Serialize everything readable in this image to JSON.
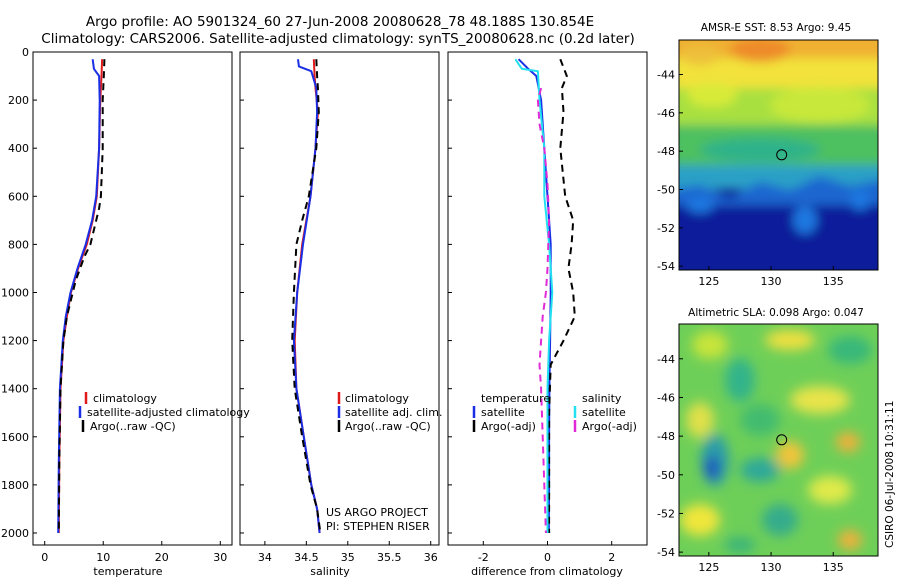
{
  "header": {
    "line1": "Argo profile: AO 5901324_60 27-Jun-2008 20080628_78 48.188S 130.854E",
    "line2": "Climatology: CARS2006. Satellite-adjusted climatology: synTS_20080628.nc (0.2d later)"
  },
  "colors": {
    "climatology": "#e01a1a",
    "satellite": "#1a2ee6",
    "argo": "#000000",
    "satellite_salinity": "#22e0f0",
    "argo_salinity": "#e02ad8"
  },
  "credits": {
    "project": "US ARGO PROJECT",
    "pi": "PI: STEPHEN RISER",
    "stamp": "CSIRO 06-Jul-2008 10:31:11"
  },
  "chart_data": [
    {
      "type": "line",
      "name": "temperature-profile",
      "xlabel": "temperature",
      "ylabel": "",
      "xlim": [
        -2,
        32
      ],
      "ylim": [
        2050,
        0
      ],
      "x_ticks": [
        0,
        10,
        20,
        30
      ],
      "y_ticks": [
        0,
        200,
        400,
        600,
        800,
        1000,
        1200,
        1400,
        1600,
        1800,
        2000
      ],
      "legend": [
        "climatology",
        "satellite-adjusted climatology",
        "Argo(..raw -QC)"
      ],
      "series": [
        {
          "name": "climatology",
          "style": "solid",
          "color": "climatology",
          "x": [
            9.8,
            9.7,
            9.5,
            9.3,
            8.9,
            8.2,
            7.2,
            5.7,
            4.5,
            3.8,
            3.2,
            2.7,
            2.5,
            2.4
          ],
          "y": [
            30,
            100,
            200,
            400,
            600,
            700,
            800,
            900,
            1000,
            1100,
            1200,
            1400,
            1700,
            2000
          ]
        },
        {
          "name": "satellite-adjusted climatology",
          "style": "solid",
          "color": "satellite",
          "x": [
            8.2,
            8.4,
            9.3,
            9.4,
            9.3,
            8.8,
            8.1,
            7.0,
            5.6,
            4.4,
            3.6,
            3.1,
            2.6,
            2.4,
            2.3
          ],
          "y": [
            30,
            70,
            100,
            200,
            400,
            600,
            700,
            800,
            900,
            1000,
            1100,
            1200,
            1400,
            1700,
            2000
          ]
        },
        {
          "name": "Argo(..raw -QC)",
          "style": "dashed",
          "color": "argo",
          "x": [
            10.2,
            10.1,
            9.9,
            9.9,
            9.6,
            9.3,
            8.8,
            7.8,
            6.8,
            5.3,
            3.8,
            3.2,
            2.7,
            2.5,
            2.4
          ],
          "y": [
            30,
            100,
            200,
            400,
            600,
            650,
            700,
            800,
            850,
            950,
            1100,
            1200,
            1400,
            1700,
            2000
          ]
        }
      ]
    },
    {
      "type": "line",
      "name": "salinity-profile",
      "xlabel": "salinity",
      "ylabel": "",
      "xlim": [
        33.7,
        36.1
      ],
      "ylim": [
        2050,
        0
      ],
      "x_ticks": [
        34,
        34.5,
        35,
        35.5,
        36
      ],
      "legend": [
        "climatology",
        "satellite adj. clim.",
        "Argo(..raw -QC)"
      ],
      "series": [
        {
          "name": "climatology",
          "style": "solid",
          "color": "climatology",
          "x": [
            34.59,
            34.6,
            34.61,
            34.64,
            34.61,
            34.55,
            34.45,
            34.39,
            34.36,
            34.38,
            34.47,
            34.56,
            34.63,
            34.66
          ],
          "y": [
            30,
            100,
            150,
            250,
            400,
            600,
            800,
            1000,
            1200,
            1400,
            1600,
            1800,
            1900,
            2000
          ]
        },
        {
          "name": "satellite adj. clim.",
          "style": "solid",
          "color": "satellite",
          "x": [
            34.4,
            34.41,
            34.56,
            34.62,
            34.63,
            34.61,
            34.55,
            34.46,
            34.39,
            34.35,
            34.38,
            34.47,
            34.56,
            34.63,
            34.66
          ],
          "y": [
            30,
            60,
            80,
            150,
            250,
            400,
            600,
            800,
            1000,
            1200,
            1400,
            1600,
            1800,
            1900,
            2000
          ]
        },
        {
          "name": "Argo(..raw -QC)",
          "style": "dashed",
          "color": "argo",
          "x": [
            34.62,
            34.63,
            34.64,
            34.65,
            34.62,
            34.53,
            34.45,
            34.38,
            34.35,
            34.33,
            34.36,
            34.45,
            34.55,
            34.63,
            34.67
          ],
          "y": [
            30,
            100,
            150,
            250,
            400,
            600,
            700,
            800,
            1000,
            1200,
            1400,
            1600,
            1800,
            1900,
            2000
          ]
        }
      ]
    },
    {
      "type": "line",
      "name": "difference-profile",
      "xlabel": "difference from climatology",
      "ylabel": "",
      "xlim": [
        -3.1,
        3.1
      ],
      "ylim": [
        2050,
        0
      ],
      "x_ticks": [
        -2,
        0,
        2
      ],
      "legend": [
        "temperature",
        "satellite",
        "Argo(-adj)",
        "salinity",
        "satellite",
        "Argo(-adj)"
      ],
      "series": [
        {
          "name": "temperature satellite",
          "style": "solid",
          "color": "satellite",
          "x": [
            -0.9,
            -0.6,
            -0.35,
            -0.2,
            -0.1,
            0.0,
            0.05,
            0.1,
            0.1,
            0.1,
            0.08,
            0.06,
            0.05,
            0.05,
            0.04
          ],
          "y": [
            30,
            70,
            100,
            200,
            400,
            600,
            700,
            800,
            900,
            1000,
            1200,
            1400,
            1600,
            1800,
            2000
          ]
        },
        {
          "name": "temperature Argo(-adj)",
          "style": "dashed",
          "color": "argo",
          "x": [
            0.4,
            0.6,
            0.45,
            0.5,
            0.4,
            0.55,
            0.8,
            0.75,
            0.65,
            0.8,
            0.85,
            0.5,
            0.1,
            0.05,
            0.05,
            0.05
          ],
          "y": [
            30,
            100,
            150,
            250,
            400,
            600,
            700,
            800,
            900,
            1000,
            1100,
            1200,
            1300,
            1500,
            1800,
            2000
          ]
        },
        {
          "name": "salinity satellite",
          "style": "solid",
          "color": "satellite_salinity",
          "x": [
            -1.0,
            -0.8,
            -0.3,
            -0.25,
            -0.1,
            -0.1,
            0.05,
            0.1,
            0.15,
            0.1,
            0.05,
            0.0,
            0.0,
            0.0,
            0.0
          ],
          "y": [
            30,
            70,
            80,
            200,
            400,
            600,
            800,
            900,
            1000,
            1100,
            1200,
            1400,
            1600,
            1800,
            2000
          ]
        },
        {
          "name": "salinity Argo(-adj)",
          "style": "dashed",
          "color": "argo_salinity",
          "x": [
            -0.2,
            -0.3,
            -0.25,
            -0.1,
            0.0,
            0.05,
            0.0,
            -0.05,
            -0.15,
            -0.2,
            -0.25,
            -0.2,
            -0.15,
            -0.1,
            -0.05
          ],
          "y": [
            150,
            200,
            300,
            400,
            550,
            700,
            900,
            1000,
            1100,
            1200,
            1300,
            1400,
            1600,
            1800,
            2000
          ]
        }
      ]
    },
    {
      "type": "heatmap",
      "name": "amsr-sst-map",
      "title": "AMSR-E SST: 8.53 Argo: 9.45",
      "xlim": [
        122.6,
        138.6
      ],
      "ylim": [
        -54.2,
        -42.2
      ],
      "x_ticks": [
        125,
        130,
        135
      ],
      "y_ticks": [
        -44,
        -46,
        -48,
        -50,
        -52,
        -54
      ],
      "marker": {
        "lon": 130.854,
        "lat": -48.188
      }
    },
    {
      "type": "heatmap",
      "name": "altimetric-sla-map",
      "title": "Altimetric SLA: 0.098 Argo: 0.047",
      "xlim": [
        122.6,
        138.6
      ],
      "ylim": [
        -54.2,
        -42.2
      ],
      "x_ticks": [
        125,
        130,
        135
      ],
      "y_ticks": [
        -44,
        -46,
        -48,
        -50,
        -52,
        -54
      ],
      "marker": {
        "lon": 130.854,
        "lat": -48.188
      }
    }
  ]
}
